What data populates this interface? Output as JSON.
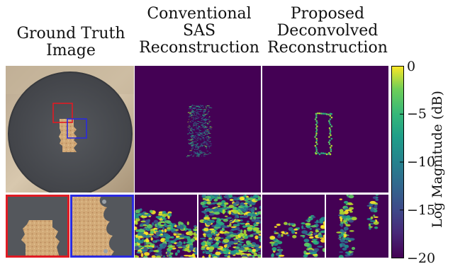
{
  "figure": {
    "columns": [
      {
        "line1": "Ground Truth",
        "line2": "Image",
        "line3": ""
      },
      {
        "line1": "Conventional",
        "line2": "SAS",
        "line3": "Reconstruction"
      },
      {
        "line1": "Proposed",
        "line2": "Deconvolved",
        "line3": "Reconstruction"
      }
    ],
    "colorbar": {
      "label": "Log Magnitude (dB)",
      "ticks": [
        {
          "value": 0,
          "label": "0"
        },
        {
          "value": -5,
          "label": "−5"
        },
        {
          "value": -10,
          "label": "−10"
        },
        {
          "value": -15,
          "label": "−15"
        },
        {
          "value": -20,
          "label": "−20"
        }
      ],
      "range": [
        -20,
        0
      ],
      "colormap": "viridis"
    },
    "colors": {
      "red_box": "#e01b24",
      "blue_box": "#2a2ae0",
      "viridis_low": "#440154",
      "viridis_high": "#fde725",
      "disk": "#4b4d52",
      "background": "#c9b79e"
    }
  }
}
